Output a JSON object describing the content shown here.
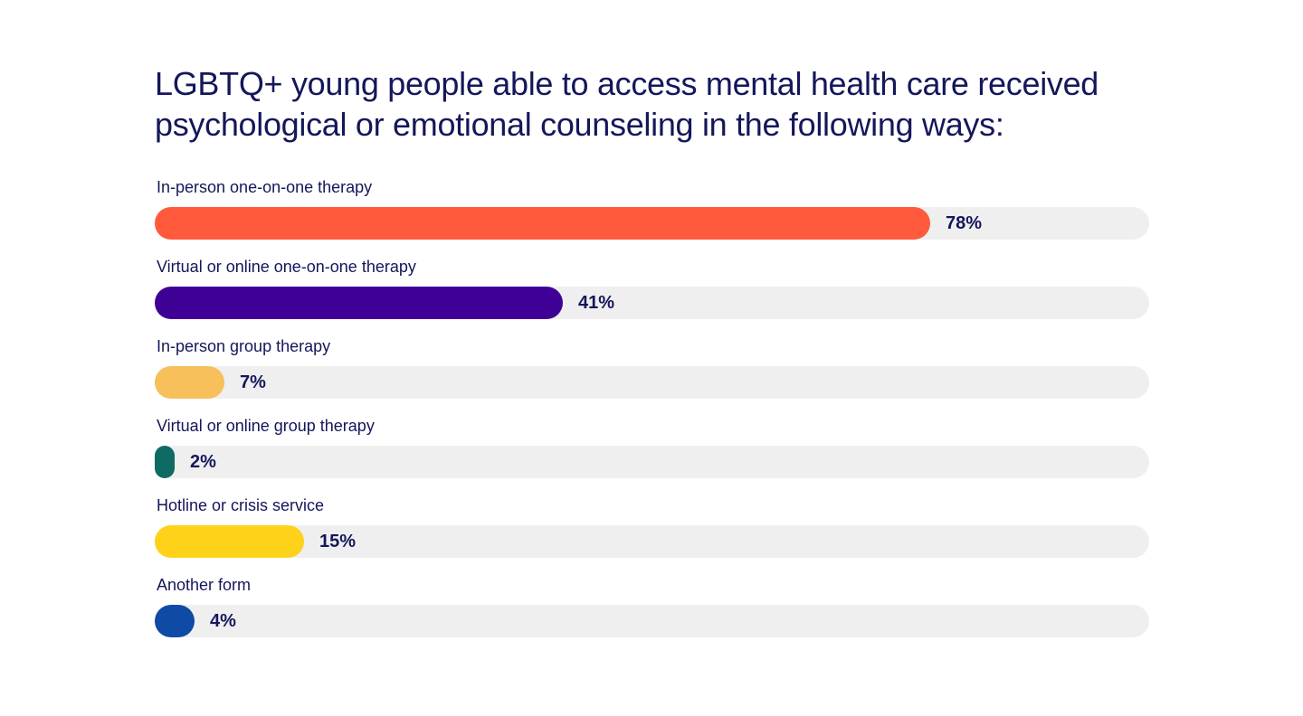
{
  "chart_data": {
    "type": "bar",
    "orientation": "horizontal",
    "title": "LGBTQ+ young people able to access mental health care received psychological or emotional counseling in the following ways:",
    "categories": [
      "In-person one-on-one therapy",
      "Virtual or online one-on-one therapy",
      "In-person group therapy",
      "Virtual or online group therapy",
      "Hotline or crisis service",
      "Another form"
    ],
    "values": [
      78,
      41,
      7,
      2,
      15,
      4
    ],
    "value_labels": [
      "78%",
      "41%",
      "7%",
      "2%",
      "15%",
      "4%"
    ],
    "colors": [
      "#ff5a3c",
      "#3f0096",
      "#f7c05a",
      "#0e6b64",
      "#fdd219",
      "#0f4aa5"
    ],
    "track_color": "#efefef",
    "text_color": "#14175a",
    "xlim": [
      0,
      100
    ],
    "grid": false,
    "legend": "none"
  }
}
